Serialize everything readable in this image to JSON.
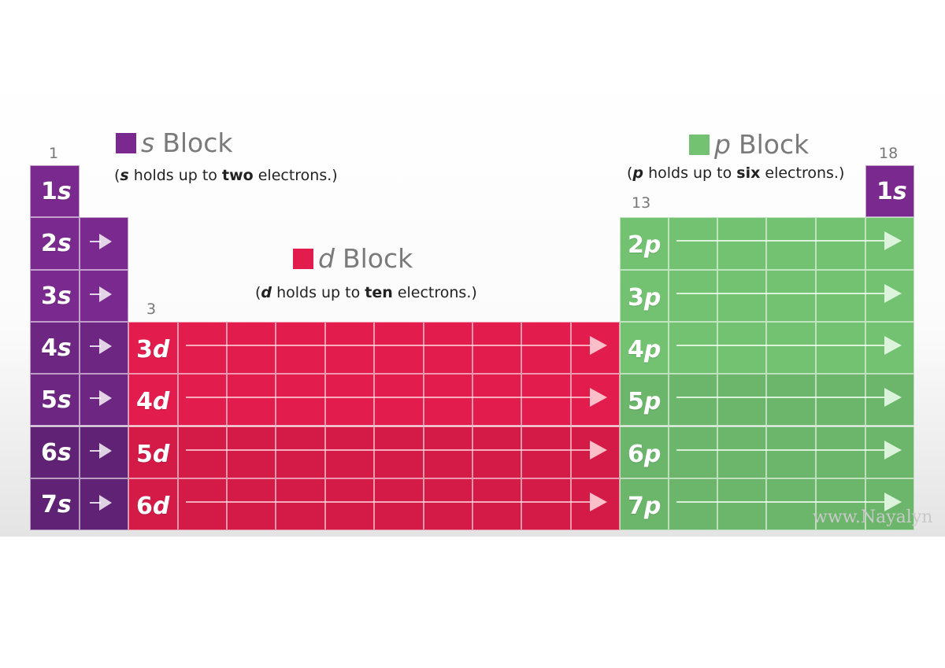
{
  "colors": {
    "s_block": "#7a2a8e",
    "d_block": "#e21c4d",
    "p_block": "#72c272",
    "group_label": "#777777",
    "title_gray": "#7a7a7a"
  },
  "group_labels": {
    "g1": "1",
    "g3": "3",
    "g13": "13",
    "g18": "18"
  },
  "blocks": {
    "s": {
      "letter": "s",
      "word": "Block",
      "sub_pre": "(",
      "sub_letter": "s",
      "sub_mid": " holds up to ",
      "sub_num": "two",
      "sub_post": " electrons.)"
    },
    "d": {
      "letter": "d",
      "word": "Block",
      "sub_pre": "(",
      "sub_letter": "d",
      "sub_mid": " holds up to ",
      "sub_num": "ten",
      "sub_post": " electrons.)"
    },
    "p": {
      "letter": "p",
      "word": "Block",
      "sub_pre": "(",
      "sub_letter": "p",
      "sub_mid": " holds up to ",
      "sub_num": "six",
      "sub_post": " electrons.)"
    }
  },
  "s_rows": [
    {
      "n": "1",
      "l": "s"
    },
    {
      "n": "2",
      "l": "s"
    },
    {
      "n": "3",
      "l": "s"
    },
    {
      "n": "4",
      "l": "s"
    },
    {
      "n": "5",
      "l": "s"
    },
    {
      "n": "6",
      "l": "s"
    },
    {
      "n": "7",
      "l": "s"
    }
  ],
  "he_cell": {
    "n": "1",
    "l": "s"
  },
  "d_rows": [
    {
      "n": "3",
      "l": "d"
    },
    {
      "n": "4",
      "l": "d"
    },
    {
      "n": "5",
      "l": "d"
    },
    {
      "n": "6",
      "l": "d"
    }
  ],
  "p_rows": [
    {
      "n": "2",
      "l": "p"
    },
    {
      "n": "3",
      "l": "p"
    },
    {
      "n": "4",
      "l": "p"
    },
    {
      "n": "5",
      "l": "p"
    },
    {
      "n": "6",
      "l": "p"
    },
    {
      "n": "7",
      "l": "p"
    }
  ],
  "watermark": "www.Nayalyn"
}
